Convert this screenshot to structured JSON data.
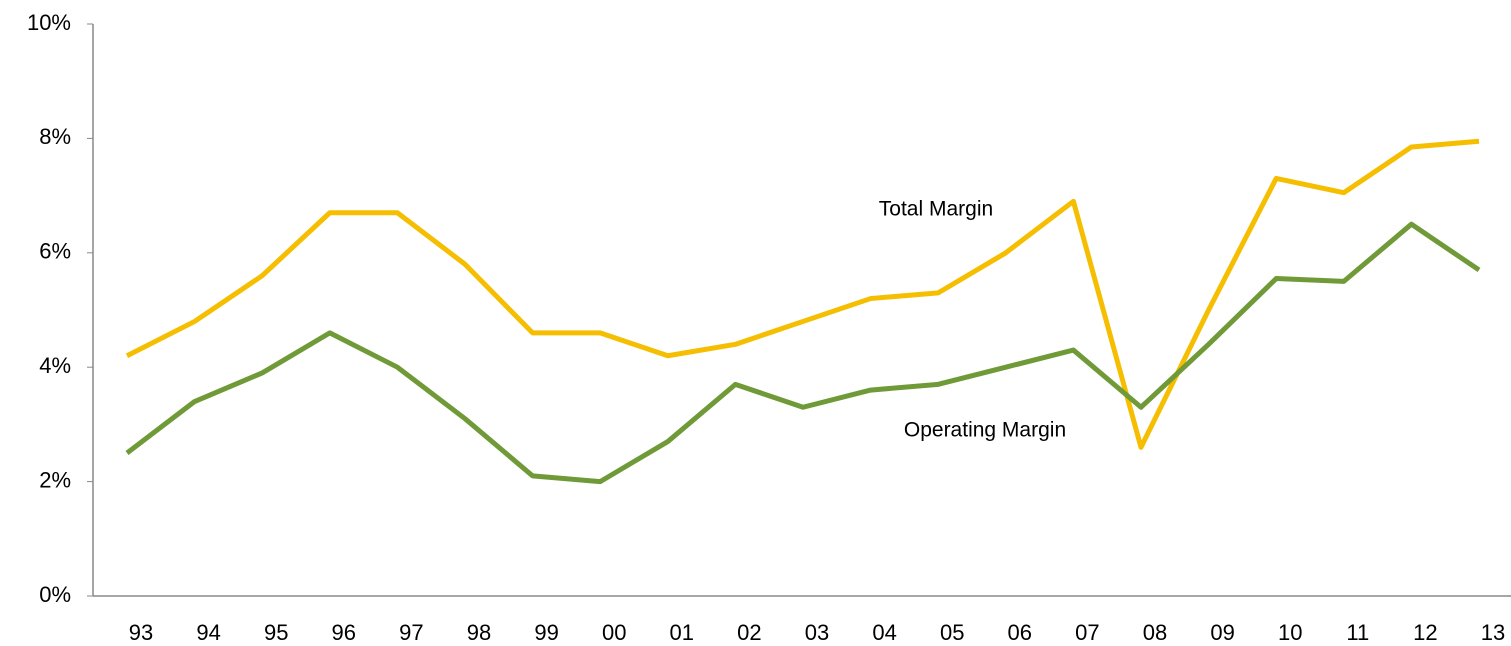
{
  "chart_data": {
    "type": "line",
    "categories": [
      "93",
      "94",
      "95",
      "96",
      "97",
      "98",
      "99",
      "00",
      "01",
      "02",
      "03",
      "04",
      "05",
      "06",
      "07",
      "08",
      "09",
      "10",
      "11",
      "12",
      "13"
    ],
    "series": [
      {
        "name": "Total Margin",
        "color": "#f5be00",
        "values": [
          4.2,
          4.8,
          5.6,
          6.7,
          6.7,
          5.8,
          4.6,
          4.6,
          4.2,
          4.4,
          4.8,
          5.2,
          5.3,
          6.0,
          6.9,
          2.6,
          5.0,
          7.3,
          7.05,
          7.85,
          7.95
        ]
      },
      {
        "name": "Operating Margin",
        "color": "#6f9a37",
        "values": [
          2.5,
          3.4,
          3.9,
          4.6,
          4.0,
          3.1,
          2.1,
          2.0,
          2.7,
          3.7,
          3.3,
          3.6,
          3.7,
          4.0,
          4.3,
          3.3,
          4.4,
          5.55,
          5.5,
          6.5,
          5.7
        ]
      }
    ],
    "ylim": [
      0,
      10
    ],
    "yticks": [
      {
        "value": 0,
        "label": "0%"
      },
      {
        "value": 2,
        "label": "2%"
      },
      {
        "value": 4,
        "label": "4%"
      },
      {
        "value": 6,
        "label": "6%"
      },
      {
        "value": 8,
        "label": "8%"
      },
      {
        "value": 10,
        "label": "10%"
      }
    ],
    "grid": false
  }
}
